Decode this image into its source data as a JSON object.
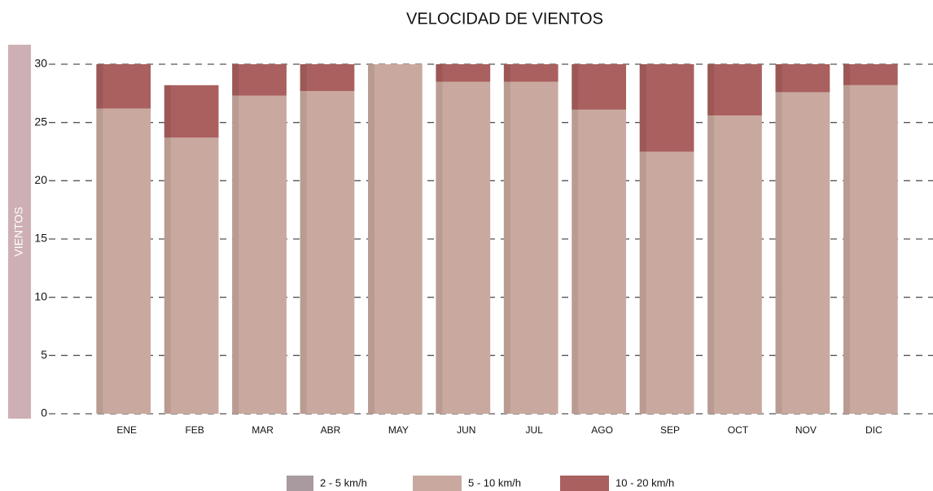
{
  "chart_data": {
    "type": "bar",
    "stacked": true,
    "title": "VELOCIDAD DE VIENTOS",
    "y_label": "VIENTOS",
    "categories": [
      "ENE",
      "FEB",
      "MAR",
      "ABR",
      "MAY",
      "JUN",
      "JUL",
      "AGO",
      "SEP",
      "OCT",
      "NOV",
      "DIC"
    ],
    "series": [
      {
        "name": "2 - 5 km/h",
        "color": "#a89a9e",
        "values": [
          0,
          0,
          0,
          0,
          0,
          0,
          0,
          0,
          0,
          0,
          0,
          0
        ]
      },
      {
        "name": "5 - 10 km/h",
        "color": "#c9a99f",
        "values": [
          26.2,
          23.7,
          27.3,
          27.7,
          30,
          28.5,
          28.5,
          26.1,
          22.5,
          25.6,
          27.6,
          28.2
        ]
      },
      {
        "name": "10 - 20 km/h",
        "color": "#a9605e",
        "values": [
          3.8,
          4.5,
          2.7,
          2.3,
          0,
          1.5,
          1.5,
          3.9,
          7.5,
          4.4,
          2.4,
          1.8
        ]
      }
    ],
    "ylim": [
      0,
      30
    ],
    "yticks": [
      0,
      5,
      10,
      15,
      20,
      25,
      30
    ],
    "grid": true,
    "legend": "bottom"
  }
}
